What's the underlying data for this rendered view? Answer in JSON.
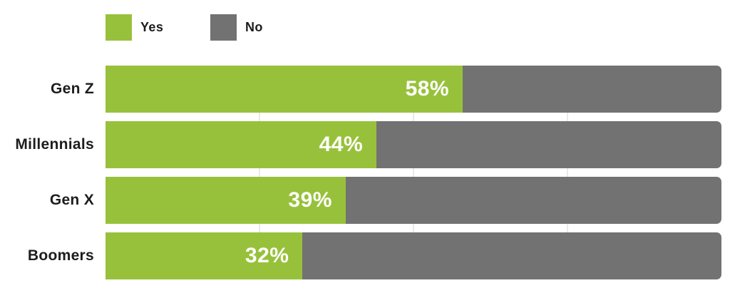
{
  "legend": {
    "items": [
      {
        "label": "Yes",
        "color": "#98C13B"
      },
      {
        "label": "No",
        "color": "#727272"
      }
    ]
  },
  "chart_data": {
    "type": "bar",
    "orientation": "horizontal",
    "stacked": true,
    "percent_total": 100,
    "title": "",
    "xlabel": "",
    "ylabel": "",
    "xlim": [
      0,
      100
    ],
    "grid": true,
    "gridlines_percent": [
      25,
      50,
      75
    ],
    "legend_position": "top-left",
    "categories": [
      "Gen Z",
      "Millennials",
      "Gen X",
      "Boomers"
    ],
    "series": [
      {
        "name": "Yes",
        "color": "#98C13B",
        "values": [
          58,
          44,
          39,
          32
        ]
      },
      {
        "name": "No",
        "color": "#727272",
        "values": [
          42,
          56,
          61,
          68
        ]
      }
    ],
    "bar_labels": [
      "58%",
      "44%",
      "39%",
      "32%"
    ],
    "bar_label_color": "#ffffff",
    "category_label_color": "#1d1d1d",
    "gridline_color": "#e9e9e9",
    "background_color": "#ffffff"
  }
}
